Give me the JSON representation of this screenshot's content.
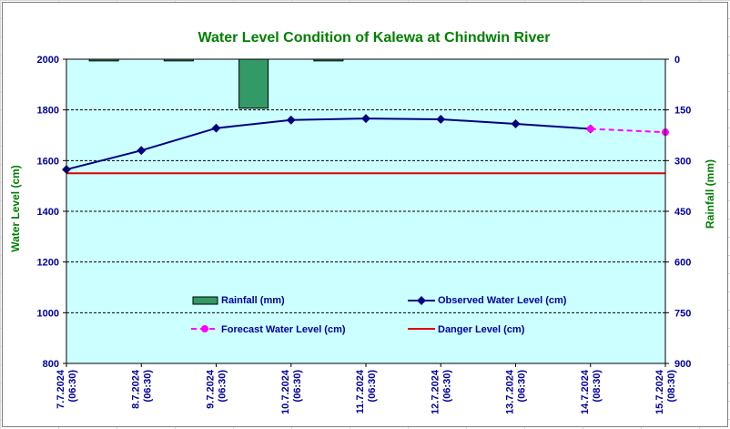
{
  "chart_data": {
    "type": "line",
    "title": "Water Level Condition of Kalewa at Chindwin River",
    "ylabel": "Water Level (cm)",
    "y2label": "Rainfall (mm)",
    "ylim": [
      800,
      2000
    ],
    "y2lim": [
      0,
      900
    ],
    "y2_inverted": true,
    "yticks": [
      "2000",
      "1800",
      "1600",
      "1400",
      "1200",
      "1000",
      "800"
    ],
    "y2ticks": [
      "0",
      "150",
      "300",
      "450",
      "600",
      "750",
      "900"
    ],
    "categories": [
      [
        "7.7.2024",
        "(06:30)"
      ],
      [
        "8.7.2024",
        "(06:30)"
      ],
      [
        "9.7.2024",
        "(06:30)"
      ],
      [
        "10.7.2024",
        "(06:30)"
      ],
      [
        "11.7.2024",
        "(06:30)"
      ],
      [
        "12.7.2024",
        "(06:30)"
      ],
      [
        "13.7.2024",
        "(06:30)"
      ],
      [
        "14.7.2024",
        "(08:30)"
      ],
      [
        "15.7.2024",
        "(08:30)"
      ]
    ],
    "series": [
      {
        "name": "Rainfall (mm)",
        "kind": "bar",
        "axis": "right",
        "color": "#339966",
        "values": [
          5,
          5,
          145,
          5,
          0,
          0,
          0,
          0,
          null
        ]
      },
      {
        "name": "Observed Water Level (cm)",
        "kind": "line",
        "axis": "left",
        "color": "#000080",
        "values": [
          1565,
          1640,
          1728,
          1760,
          1766,
          1763,
          1745,
          1725,
          null
        ]
      },
      {
        "name": "Forecast Water Level (cm)",
        "kind": "dashed-line",
        "axis": "left",
        "color": "#ff00ff",
        "values": [
          null,
          null,
          null,
          null,
          null,
          null,
          null,
          1725,
          1712
        ]
      },
      {
        "name": "Danger Level (cm)",
        "kind": "hline",
        "axis": "left",
        "color": "#e00000",
        "value": 1550
      }
    ],
    "grid": true,
    "plot_background": "#ccffff",
    "legend_position": "inside-bottom"
  }
}
